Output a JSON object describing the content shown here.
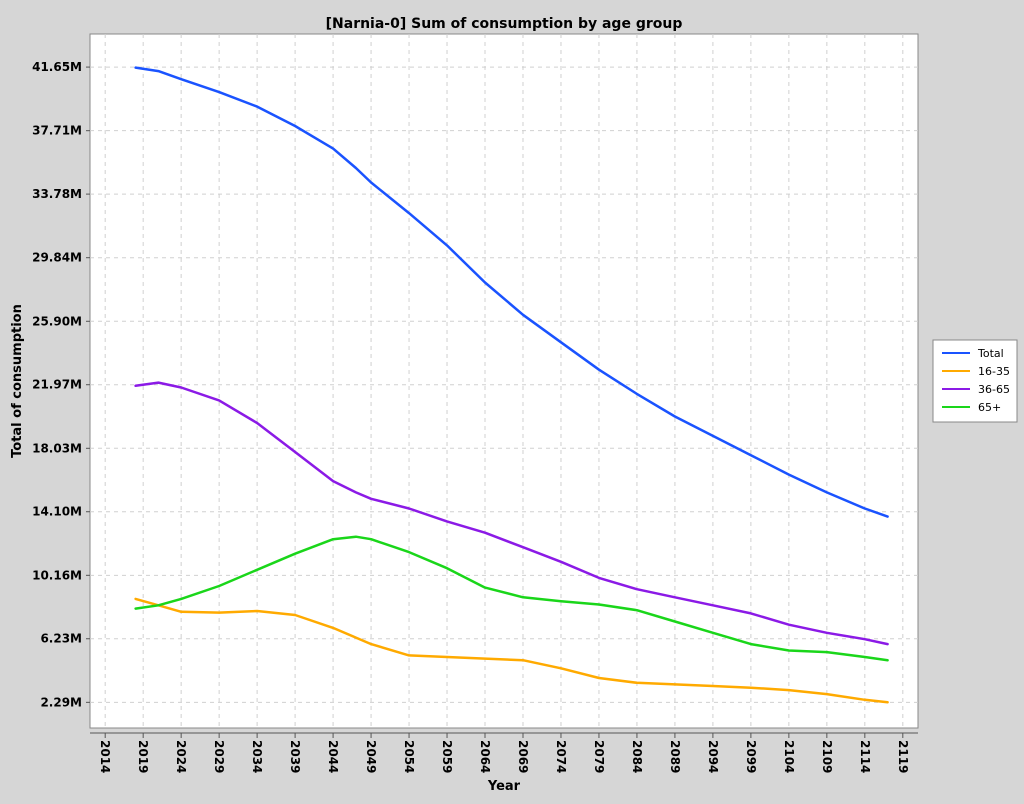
{
  "chart_data": {
    "type": "line",
    "title": "[Narnia-0] Sum of consumption by age group",
    "xlabel": "Year",
    "ylabel": "Total of consumption",
    "xlim": [
      2012,
      2121
    ],
    "ylim": [
      0.7,
      43.7
    ],
    "x_ticks": [
      "2014",
      "2019",
      "2024",
      "2029",
      "2034",
      "2039",
      "2044",
      "2049",
      "2054",
      "2059",
      "2064",
      "2069",
      "2074",
      "2079",
      "2084",
      "2089",
      "2094",
      "2099",
      "2104",
      "2109",
      "2114",
      "2119"
    ],
    "x_tick_values": [
      2014,
      2019,
      2024,
      2029,
      2034,
      2039,
      2044,
      2049,
      2054,
      2059,
      2064,
      2069,
      2074,
      2079,
      2084,
      2089,
      2094,
      2099,
      2104,
      2109,
      2114,
      2119
    ],
    "y_ticks": [
      "2.29M",
      "6.23M",
      "10.16M",
      "14.10M",
      "18.03M",
      "21.97M",
      "25.90M",
      "29.84M",
      "33.78M",
      "37.71M",
      "41.65M"
    ],
    "y_tick_values": [
      2.29,
      6.23,
      10.16,
      14.1,
      18.03,
      21.97,
      25.9,
      29.84,
      33.78,
      37.71,
      41.65
    ],
    "grid": true,
    "legend_position": "right",
    "x": [
      2018,
      2021,
      2024,
      2029,
      2034,
      2039,
      2044,
      2047,
      2049,
      2054,
      2059,
      2064,
      2069,
      2074,
      2079,
      2084,
      2089,
      2094,
      2099,
      2104,
      2109,
      2114,
      2117
    ],
    "series": [
      {
        "name": "Total",
        "color": "#1a53ff",
        "values": [
          41.62,
          41.4,
          40.9,
          40.1,
          39.2,
          38.0,
          36.6,
          35.4,
          34.5,
          32.6,
          30.6,
          28.3,
          26.3,
          24.6,
          22.9,
          21.4,
          20.0,
          18.8,
          17.6,
          16.4,
          15.3,
          14.3,
          13.8
        ]
      },
      {
        "name": "16-35",
        "color": "#ffaa00",
        "values": [
          8.7,
          8.3,
          7.9,
          7.85,
          7.95,
          7.7,
          6.9,
          6.3,
          5.9,
          5.2,
          5.1,
          5.0,
          4.9,
          4.4,
          3.8,
          3.5,
          3.4,
          3.3,
          3.2,
          3.05,
          2.8,
          2.45,
          2.3
        ]
      },
      {
        "name": "36-65",
        "color": "#8b1ae6",
        "values": [
          21.9,
          22.1,
          21.8,
          21.0,
          19.6,
          17.8,
          16.0,
          15.3,
          14.9,
          14.3,
          13.5,
          12.8,
          11.9,
          11.0,
          10.0,
          9.3,
          8.8,
          8.3,
          7.8,
          7.1,
          6.6,
          6.2,
          5.9
        ]
      },
      {
        "name": "65+",
        "color": "#1ad61a",
        "values": [
          8.1,
          8.3,
          8.7,
          9.5,
          10.5,
          11.5,
          12.4,
          12.55,
          12.4,
          11.6,
          10.6,
          9.4,
          8.8,
          8.55,
          8.35,
          8.0,
          7.3,
          6.6,
          5.9,
          5.5,
          5.4,
          5.1,
          4.9
        ]
      }
    ]
  }
}
